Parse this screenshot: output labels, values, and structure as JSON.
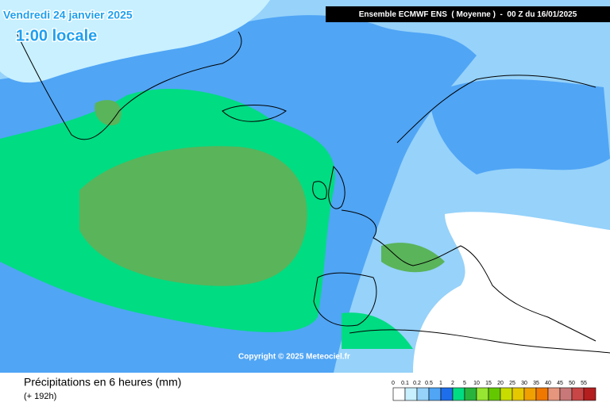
{
  "header": {
    "date": "Vendredi 24 janvier 2025",
    "time": "1:00 locale",
    "model": "Ensemble ECMWF ENS  ( Moyenne )  -  00 Z du 16/01/2025"
  },
  "copyright": "Copyright © 2025 Meteociel.fr",
  "footer": {
    "title": "Précipitations en 6 heures (mm)",
    "lead": "(+ 192h)"
  },
  "legend": {
    "levels": [
      0,
      0.1,
      0.2,
      0.5,
      1,
      2,
      5,
      10,
      15,
      20,
      25,
      30,
      35,
      40,
      45,
      50,
      55
    ],
    "colors": [
      "#ffffff",
      "#c8f0ff",
      "#96d2fa",
      "#50a5f5",
      "#1e6eeb",
      "#00dc82",
      "#28b43c",
      "#96e632",
      "#64c800",
      "#c8dc00",
      "#e6c800",
      "#f0a000",
      "#f07800",
      "#e6967d",
      "#c87878",
      "#c84646",
      "#b41e1e"
    ]
  }
}
